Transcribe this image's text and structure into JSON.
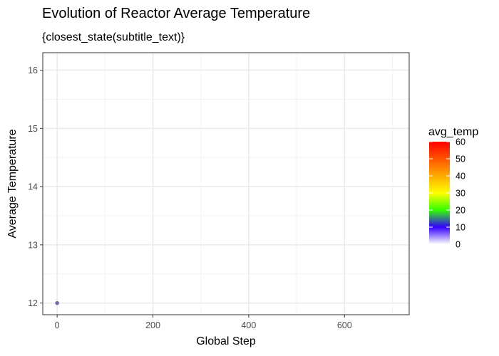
{
  "chart_data": {
    "type": "scatter",
    "title": "Evolution of Reactor Average Temperature",
    "subtitle": "{closest_state(subtitle_text)}",
    "xlabel": "Global Step",
    "ylabel": "Average Temperature",
    "xlim": [
      -30,
      735
    ],
    "ylim": [
      11.8,
      16.3
    ],
    "x_ticks": [
      0,
      200,
      400,
      600
    ],
    "y_ticks": [
      12,
      13,
      14,
      15,
      16
    ],
    "grid": true,
    "points": [
      {
        "x": 0,
        "y": 12,
        "avg_temp": 12,
        "color": "#5b5ea6"
      }
    ],
    "legend": {
      "title": "avg_temp",
      "placement": "right",
      "range": [
        0,
        60
      ],
      "ticks": [
        0,
        10,
        20,
        30,
        40,
        50,
        60
      ],
      "gradient": [
        {
          "value": 0,
          "color": "#ffffff"
        },
        {
          "value": 10,
          "color": "#3300ff"
        },
        {
          "value": 20,
          "color": "#33ff00"
        },
        {
          "value": 30,
          "color": "#ffff00"
        },
        {
          "value": 40,
          "color": "#ffaa00"
        },
        {
          "value": 60,
          "color": "#ff0000"
        }
      ]
    }
  }
}
